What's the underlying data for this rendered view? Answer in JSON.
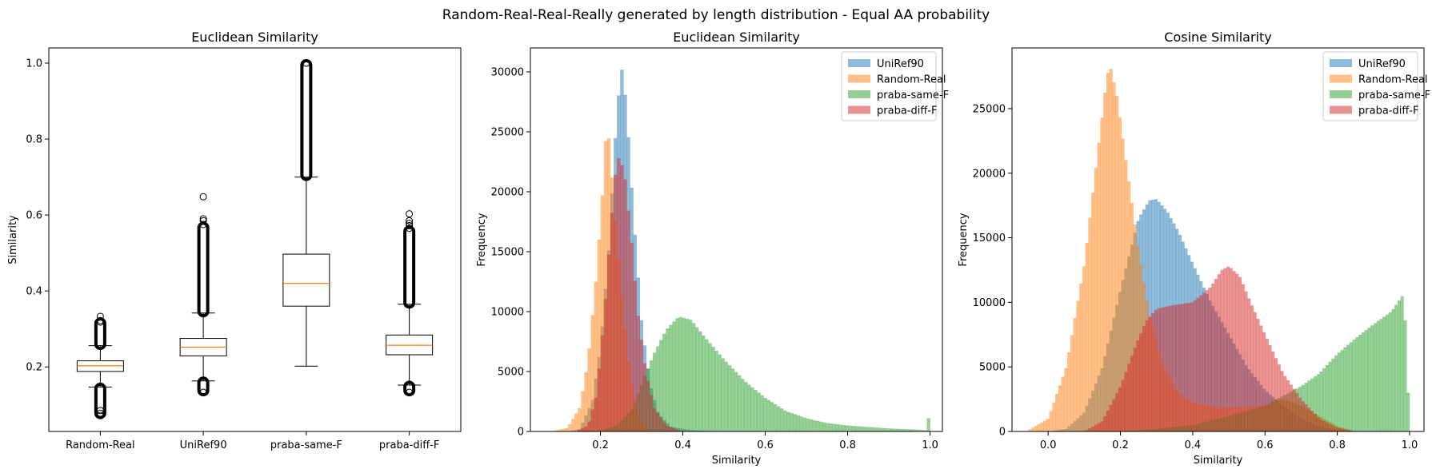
{
  "figure": {
    "suptitle": "Random-Real-Real-Really generated by length distribution - Equal AA probability"
  },
  "chart_data": [
    {
      "type": "box",
      "title": "Euclidean Similarity",
      "xlabel": "",
      "ylabel": "Similarity",
      "ylim": [
        0.03,
        1.04
      ],
      "yticks": [
        0.2,
        0.4,
        0.6,
        0.8,
        1.0
      ],
      "ytick_labels": [
        "0.2",
        "0.4",
        "0.6",
        "0.8",
        "1.0"
      ],
      "categories": [
        "Random-Real",
        "UniRef90",
        "praba-same-F",
        "praba-diff-F"
      ],
      "boxes": [
        {
          "label": "Random-Real",
          "whislo": 0.147,
          "q1": 0.188,
          "med": 0.203,
          "q3": 0.216,
          "whishi": 0.256,
          "fliers_low_band": [
            0.075,
            0.146
          ],
          "fliers_high_band": [
            0.257,
            0.318
          ],
          "fliers": [
            0.333,
            0.322,
            0.318,
            0.072,
            0.078,
            0.085
          ]
        },
        {
          "label": "UniRef90",
          "whislo": 0.163,
          "q1": 0.229,
          "med": 0.252,
          "q3": 0.275,
          "whishi": 0.342,
          "fliers_low_band": [
            0.135,
            0.162
          ],
          "fliers_high_band": [
            0.343,
            0.57
          ],
          "fliers": [
            0.648,
            0.59,
            0.585,
            0.575,
            0.133
          ]
        },
        {
          "label": "praba-same-F",
          "whislo": 0.202,
          "q1": 0.36,
          "med": 0.42,
          "q3": 0.497,
          "whishi": 0.7,
          "fliers_low_band": null,
          "fliers_high_band": [
            0.702,
            0.998
          ],
          "fliers": [
            1.0
          ]
        },
        {
          "label": "praba-diff-F",
          "whislo": 0.152,
          "q1": 0.232,
          "med": 0.257,
          "q3": 0.284,
          "whishi": 0.365,
          "fliers_low_band": [
            0.135,
            0.151
          ],
          "fliers_high_band": [
            0.366,
            0.56
          ],
          "fliers": [
            0.603,
            0.585,
            0.578,
            0.572,
            0.565,
            0.133
          ]
        }
      ],
      "colors": {
        "box": "#000000",
        "median": "#ff7f0e"
      }
    },
    {
      "type": "histogram",
      "title": "Euclidean Similarity",
      "xlabel": "Similarity",
      "ylabel": "Frequency",
      "xlim": [
        0.03,
        1.03
      ],
      "ylim": [
        0,
        32000
      ],
      "xticks": [
        0.2,
        0.4,
        0.6,
        0.8,
        1.0
      ],
      "xtick_labels": [
        "0.2",
        "0.4",
        "0.6",
        "0.8",
        "1.0"
      ],
      "yticks": [
        0,
        5000,
        10000,
        15000,
        20000,
        25000,
        30000
      ],
      "ytick_labels": [
        "0",
        "5000",
        "10000",
        "15000",
        "20000",
        "25000",
        "30000"
      ],
      "legend": "top-right",
      "alpha": 0.5,
      "bin_range": [
        0.05,
        1.0
      ],
      "bin_count": 120,
      "series": [
        {
          "name": "UniRef90",
          "color": "#1f77b4",
          "anchors": [
            [
              0.12,
              0
            ],
            [
              0.15,
              200
            ],
            [
              0.18,
              2500
            ],
            [
              0.2,
              7000
            ],
            [
              0.22,
              15000
            ],
            [
              0.235,
              24000
            ],
            [
              0.245,
              28500
            ],
            [
              0.25,
              30300
            ],
            [
              0.255,
              30000
            ],
            [
              0.265,
              26000
            ],
            [
              0.28,
              18000
            ],
            [
              0.3,
              9000
            ],
            [
              0.32,
              4000
            ],
            [
              0.34,
              1500
            ],
            [
              0.37,
              400
            ],
            [
              0.42,
              100
            ],
            [
              0.5,
              0
            ]
          ]
        },
        {
          "name": "Random-Real",
          "color": "#ff7f0e",
          "anchors": [
            [
              0.08,
              0
            ],
            [
              0.12,
              300
            ],
            [
              0.15,
              2000
            ],
            [
              0.17,
              6000
            ],
            [
              0.19,
              13000
            ],
            [
              0.205,
              20000
            ],
            [
              0.215,
              25800
            ],
            [
              0.222,
              24000
            ],
            [
              0.235,
              18000
            ],
            [
              0.25,
              12000
            ],
            [
              0.27,
              5000
            ],
            [
              0.29,
              1500
            ],
            [
              0.31,
              200
            ],
            [
              0.33,
              0
            ]
          ]
        },
        {
          "name": "praba-same-F",
          "color": "#2ca02c",
          "anchors": [
            [
              0.19,
              0
            ],
            [
              0.24,
              500
            ],
            [
              0.28,
              2000
            ],
            [
              0.3,
              4000
            ],
            [
              0.33,
              6500
            ],
            [
              0.36,
              8500
            ],
            [
              0.39,
              9600
            ],
            [
              0.42,
              9300
            ],
            [
              0.45,
              8000
            ],
            [
              0.5,
              6000
            ],
            [
              0.55,
              4200
            ],
            [
              0.6,
              2800
            ],
            [
              0.65,
              1700
            ],
            [
              0.7,
              1100
            ],
            [
              0.75,
              700
            ],
            [
              0.8,
              500
            ],
            [
              0.9,
              250
            ],
            [
              0.97,
              150
            ],
            [
              0.99,
              100
            ],
            [
              0.995,
              1100
            ],
            [
              1.0,
              1100
            ]
          ]
        },
        {
          "name": "praba-diff-F",
          "color": "#d62728",
          "anchors": [
            [
              0.14,
              0
            ],
            [
              0.17,
              500
            ],
            [
              0.19,
              3000
            ],
            [
              0.21,
              10000
            ],
            [
              0.225,
              17000
            ],
            [
              0.24,
              23000
            ],
            [
              0.25,
              22500
            ],
            [
              0.26,
              21000
            ],
            [
              0.275,
              16000
            ],
            [
              0.29,
              10000
            ],
            [
              0.31,
              5000
            ],
            [
              0.33,
              2000
            ],
            [
              0.36,
              500
            ],
            [
              0.4,
              0
            ]
          ]
        }
      ]
    },
    {
      "type": "histogram",
      "title": "Cosine Similarity",
      "xlabel": "Similarity",
      "ylabel": "Frequency",
      "xlim": [
        -0.1,
        1.04
      ],
      "ylim": [
        0,
        29700
      ],
      "xticks": [
        0.0,
        0.2,
        0.4,
        0.6,
        0.8,
        1.0
      ],
      "xtick_labels": [
        "0.0",
        "0.2",
        "0.4",
        "0.6",
        "0.8",
        "1.0"
      ],
      "yticks": [
        0,
        5000,
        10000,
        15000,
        20000,
        25000
      ],
      "ytick_labels": [
        "0",
        "5000",
        "10000",
        "15000",
        "20000",
        "25000"
      ],
      "legend": "top-right",
      "alpha": 0.5,
      "bin_range": [
        -0.08,
        1.0
      ],
      "bin_count": 130,
      "series": [
        {
          "name": "UniRef90",
          "color": "#1f77b4",
          "anchors": [
            [
              0.0,
              0
            ],
            [
              0.05,
              200
            ],
            [
              0.1,
              1500
            ],
            [
              0.15,
              5000
            ],
            [
              0.2,
              11000
            ],
            [
              0.25,
              16500
            ],
            [
              0.28,
              17900
            ],
            [
              0.3,
              18000
            ],
            [
              0.33,
              17000
            ],
            [
              0.36,
              15500
            ],
            [
              0.4,
              13000
            ],
            [
              0.45,
              10000
            ],
            [
              0.5,
              7500
            ],
            [
              0.55,
              5000
            ],
            [
              0.6,
              3200
            ],
            [
              0.65,
              2000
            ],
            [
              0.7,
              1000
            ],
            [
              0.75,
              400
            ],
            [
              0.8,
              100
            ],
            [
              0.85,
              0
            ]
          ]
        },
        {
          "name": "Random-Real",
          "color": "#ff7f0e",
          "anchors": [
            [
              -0.06,
              0
            ],
            [
              0.0,
              1000
            ],
            [
              0.05,
              5000
            ],
            [
              0.1,
              13000
            ],
            [
              0.13,
              20000
            ],
            [
              0.16,
              27000
            ],
            [
              0.17,
              28500
            ],
            [
              0.19,
              26000
            ],
            [
              0.22,
              20000
            ],
            [
              0.25,
              14000
            ],
            [
              0.28,
              9000
            ],
            [
              0.32,
              5000
            ],
            [
              0.36,
              3000
            ],
            [
              0.4,
              2200
            ],
            [
              0.5,
              1800
            ],
            [
              0.6,
              2000
            ],
            [
              0.65,
              2500
            ],
            [
              0.7,
              2000
            ],
            [
              0.75,
              1200
            ],
            [
              0.8,
              400
            ],
            [
              0.85,
              0
            ]
          ]
        },
        {
          "name": "praba-same-F",
          "color": "#2ca02c",
          "anchors": [
            [
              0.2,
              0
            ],
            [
              0.3,
              200
            ],
            [
              0.4,
              500
            ],
            [
              0.5,
              1200
            ],
            [
              0.6,
              2000
            ],
            [
              0.7,
              3500
            ],
            [
              0.75,
              4500
            ],
            [
              0.8,
              6000
            ],
            [
              0.85,
              7200
            ],
            [
              0.9,
              8300
            ],
            [
              0.95,
              9300
            ],
            [
              0.98,
              10500
            ],
            [
              0.99,
              8000
            ],
            [
              0.995,
              3000
            ],
            [
              1.0,
              3000
            ]
          ]
        },
        {
          "name": "praba-diff-F",
          "color": "#d62728",
          "anchors": [
            [
              0.1,
              0
            ],
            [
              0.15,
              800
            ],
            [
              0.2,
              3500
            ],
            [
              0.24,
              6500
            ],
            [
              0.27,
              8500
            ],
            [
              0.3,
              9500
            ],
            [
              0.35,
              9800
            ],
            [
              0.4,
              10000
            ],
            [
              0.45,
              11200
            ],
            [
              0.48,
              12500
            ],
            [
              0.5,
              12800
            ],
            [
              0.53,
              12000
            ],
            [
              0.56,
              10000
            ],
            [
              0.6,
              7500
            ],
            [
              0.65,
              4500
            ],
            [
              0.7,
              2500
            ],
            [
              0.75,
              1000
            ],
            [
              0.8,
              300
            ],
            [
              0.85,
              0
            ]
          ]
        }
      ]
    }
  ]
}
